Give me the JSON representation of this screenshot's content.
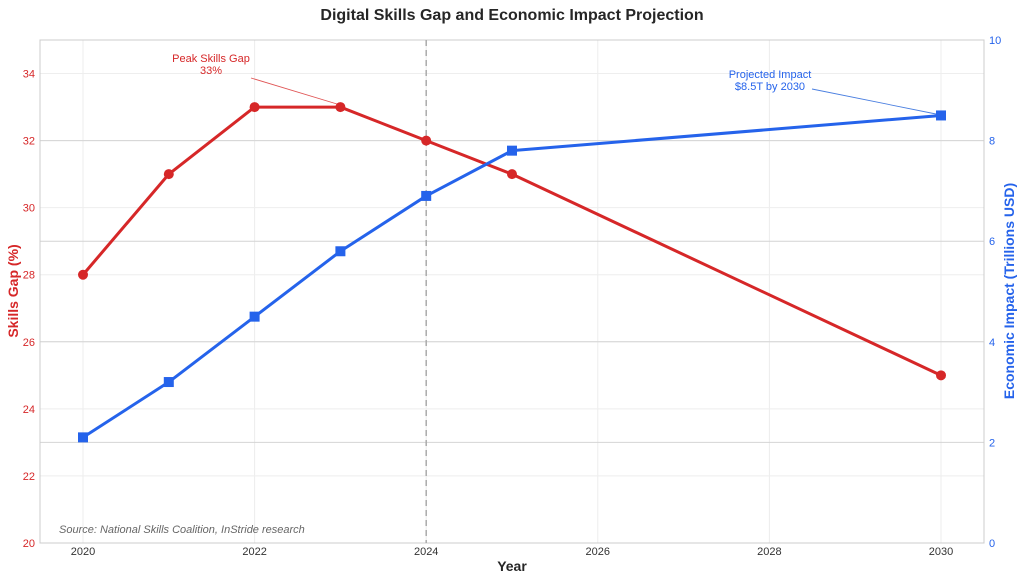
{
  "chart_data": {
    "type": "line",
    "title": "Digital Skills Gap and Economic Impact Projection",
    "xlabel": "Year",
    "ylabel_left": "Skills Gap (%)",
    "ylabel_right": "Economic Impact (Trillions USD)",
    "x": [
      2020,
      2021,
      2022,
      2023,
      2024,
      2025,
      2030
    ],
    "xlim": [
      2019.5,
      2030.5
    ],
    "x_ticks": [
      "2020",
      "2022",
      "2024",
      "2026",
      "2028",
      "2030"
    ],
    "ylim_left": [
      20,
      35
    ],
    "y_ticks_left": [
      "20",
      "22",
      "24",
      "26",
      "28",
      "30",
      "32",
      "34"
    ],
    "ylim_right": [
      0,
      10
    ],
    "y_ticks_right": [
      "0",
      "2",
      "4",
      "6",
      "8",
      "10"
    ],
    "grid": true,
    "series": [
      {
        "name": "Skills Gap (%)",
        "axis": "left",
        "color": "#d62728",
        "marker": "circle",
        "values": [
          28,
          31,
          33,
          33,
          32,
          31,
          25
        ]
      },
      {
        "name": "Economic Impact (Trillions USD)",
        "axis": "right",
        "color": "#2563eb",
        "marker": "square",
        "values": [
          2.1,
          3.2,
          4.5,
          5.8,
          6.9,
          7.8,
          8.5
        ]
      }
    ],
    "reference_line": {
      "x": 2024,
      "style": "dashed",
      "color": "#aaaaaa"
    },
    "annotations": [
      {
        "series": 0,
        "point_x": 2023,
        "point_y": 33,
        "text_x": 2021.3,
        "text_y": 34.2,
        "lines": [
          "Peak Skills Gap",
          "33%"
        ],
        "color": "#d62728"
      },
      {
        "series": 1,
        "point_x": 2030,
        "point_y": 8.5,
        "text_x": 2027.5,
        "text_y": 9.1,
        "lines": [
          "Projected Impact",
          "$8.5T by 2030"
        ],
        "color": "#2563eb"
      }
    ],
    "source_note": "Source: National Skills Coalition, InStride research"
  }
}
